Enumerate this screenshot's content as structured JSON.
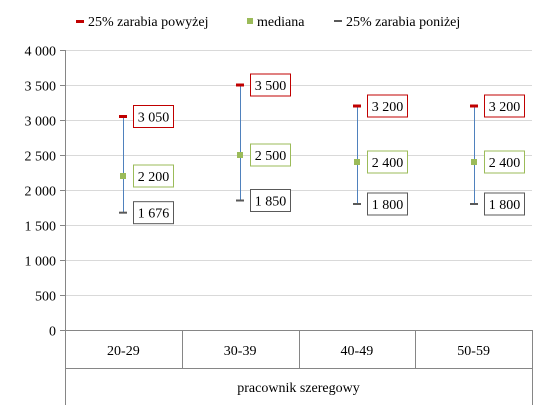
{
  "chart_data": {
    "type": "stock",
    "title": "",
    "categories": [
      "20-29",
      "30-39",
      "40-49",
      "50-59"
    ],
    "group_label": "pracownik szeregowy",
    "ylim": [
      0,
      4000
    ],
    "yticks": [
      0,
      500,
      1000,
      1500,
      2000,
      2500,
      3000,
      3500,
      4000
    ],
    "ytick_labels": [
      "0",
      "500",
      "1 000",
      "1 500",
      "2 000",
      "2 500",
      "3 000",
      "3 500",
      "4 000"
    ],
    "grid": true,
    "legend_position": "top",
    "series": [
      {
        "name": "25% zarabia powyżej",
        "color": "#C00000",
        "values": [
          3050,
          3500,
          3200,
          3200
        ],
        "labels": [
          "3 050",
          "3 500",
          "3 200",
          "3 200"
        ]
      },
      {
        "name": "mediana",
        "color": "#9BBB59",
        "values": [
          2200,
          2500,
          2400,
          2400
        ],
        "labels": [
          "2 200",
          "2 500",
          "2 400",
          "2 400"
        ]
      },
      {
        "name": "25% zarabia poniżej",
        "color": "#595959",
        "values": [
          1676,
          1850,
          1800,
          1800
        ],
        "labels": [
          "1 676",
          "1 850",
          "1 800",
          "1 800"
        ]
      }
    ],
    "range_line_color": "#4F81BD"
  }
}
